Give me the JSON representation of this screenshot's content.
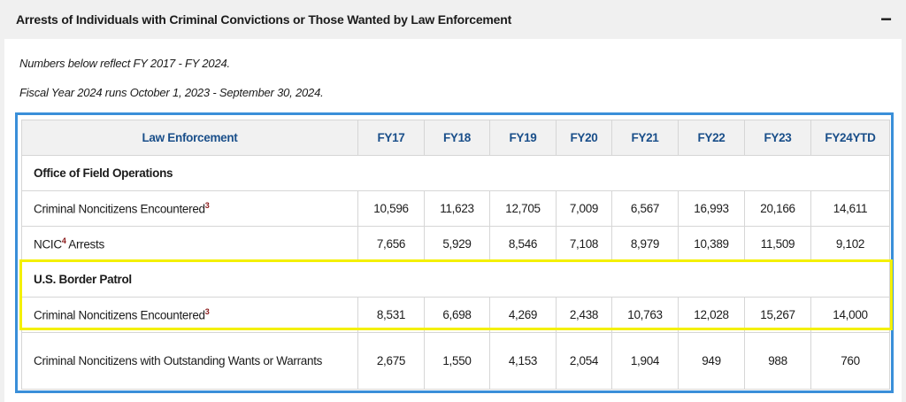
{
  "accordion": {
    "title": "Arrests of Individuals with Criminal Convictions or Those Wanted by Law Enforcement",
    "toggle": "−"
  },
  "notes": [
    "Numbers below reflect FY 2017 - FY 2024.",
    "Fiscal Year 2024 runs October 1, 2023 - September 30, 2024."
  ],
  "table": {
    "headers": [
      "Law Enforcement",
      "FY17",
      "FY18",
      "FY19",
      "FY20",
      "FY21",
      "FY22",
      "FY23",
      "FY24YTD"
    ],
    "sections": [
      {
        "title": "Office of Field Operations",
        "rows": [
          {
            "label": "Criminal Noncitizens Encountered",
            "sup": "3",
            "suffix": "",
            "values": [
              "10,596",
              "11,623",
              "12,705",
              "7,009",
              "6,567",
              "16,993",
              "20,166",
              "14,611"
            ]
          },
          {
            "label": "NCIC",
            "sup": "4",
            "suffix": " Arrests",
            "values": [
              "7,656",
              "5,929",
              "8,546",
              "7,108",
              "8,979",
              "10,389",
              "11,509",
              "9,102"
            ]
          }
        ]
      },
      {
        "title": "U.S. Border Patrol",
        "rows": [
          {
            "label": "Criminal Noncitizens Encountered",
            "sup": "3",
            "suffix": "",
            "values": [
              "8,531",
              "6,698",
              "4,269",
              "2,438",
              "10,763",
              "12,028",
              "15,267",
              "14,000"
            ]
          },
          {
            "label": "Criminal Noncitizens with Outstanding Wants or Warrants",
            "sup": "",
            "suffix": "",
            "values": [
              "2,675",
              "1,550",
              "4,153",
              "2,054",
              "1,904",
              "949",
              "988",
              "760"
            ]
          }
        ]
      }
    ]
  },
  "colors": {
    "highlight": "#f4f000",
    "frame": "#3a8fd9",
    "header_text": "#1a4f8a"
  }
}
